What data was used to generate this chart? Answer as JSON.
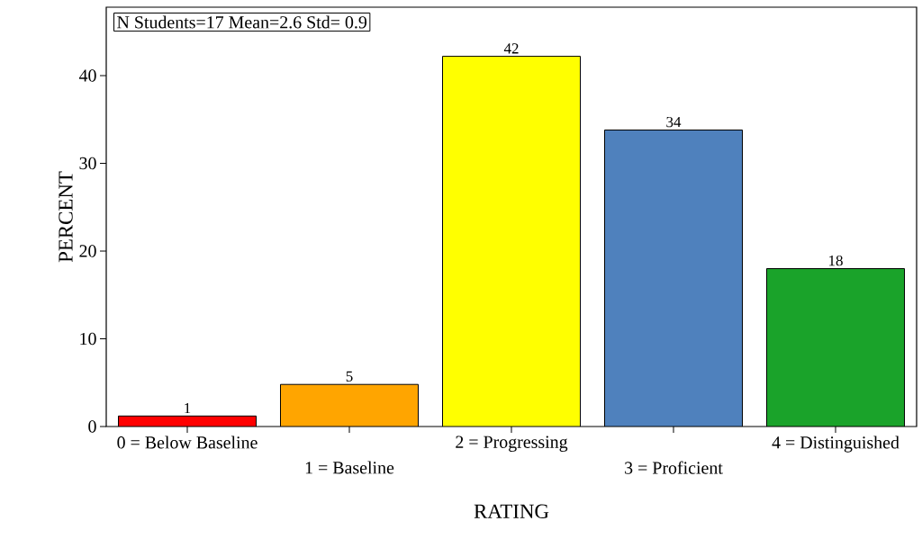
{
  "chart_data": {
    "type": "bar",
    "xlabel": "RATING",
    "ylabel": "PERCENT",
    "annotations": [
      "N Students=17   Mean=2.6   Std= 0.9"
    ],
    "categories": [
      "0 = Below Baseline",
      "1 = Baseline",
      "2 = Progressing",
      "3 = Proficient",
      "4 = Distinguished"
    ],
    "values": [
      1.2,
      4.8,
      42.2,
      33.8,
      18.0
    ],
    "value_labels": [
      "1",
      "5",
      "42",
      "34",
      "18"
    ],
    "colors": [
      "#ff0000",
      "#ffa500",
      "#ffff00",
      "#4f81bd",
      "#1aa32a"
    ],
    "ylim": [
      0,
      47.8
    ],
    "yticks": [
      0,
      10,
      20,
      30,
      40
    ]
  }
}
